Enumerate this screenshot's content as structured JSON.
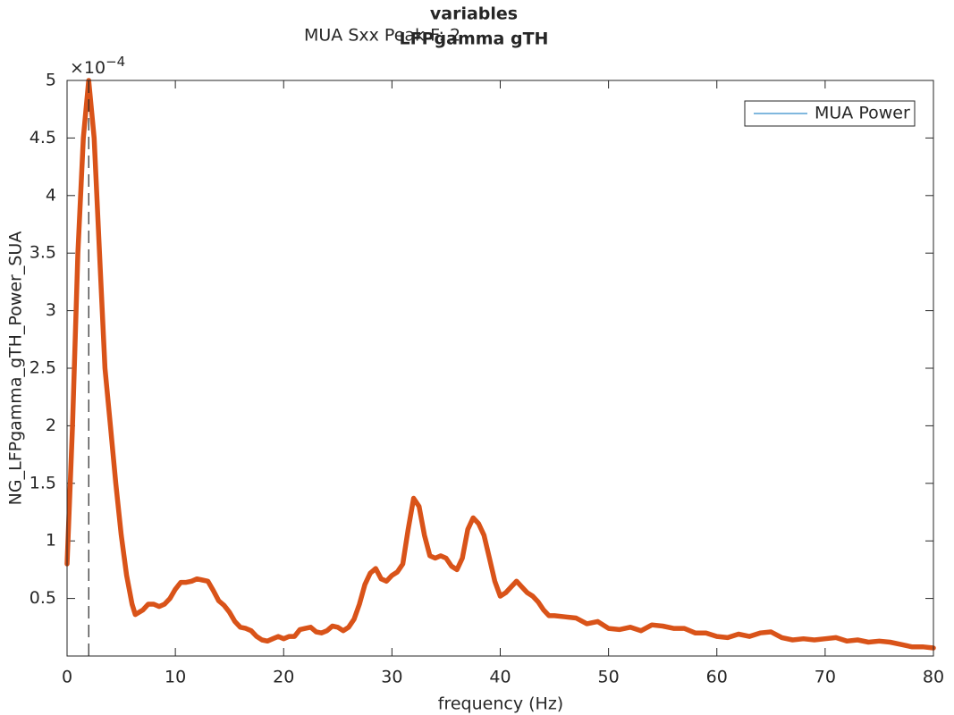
{
  "chart_data": {
    "type": "line",
    "title": "variables",
    "subtitle": "LFPgamma gTH",
    "annotation": "MUA Sxx Peak F: 2",
    "peak_x": 2,
    "xlabel": "frequency (Hz)",
    "ylabel": "NG_LFPgamma_gTH_Power_SUA",
    "y_exponent": {
      "base": "×10",
      "power": "−4"
    },
    "x": [
      0,
      0.5,
      1,
      1.5,
      2,
      2.5,
      3,
      3.5,
      4,
      4.5,
      5,
      5.5,
      6,
      6.3,
      7,
      7.5,
      8,
      8.5,
      9,
      9.5,
      10,
      10.5,
      11,
      11.5,
      12,
      12.5,
      13,
      13.5,
      14,
      14.5,
      15,
      15.5,
      16,
      16.5,
      17,
      17.5,
      18,
      18.5,
      19,
      19.5,
      20,
      20.5,
      21,
      21.5,
      22,
      22.5,
      23,
      23.5,
      24,
      24.5,
      25,
      25.5,
      26,
      26.5,
      27,
      27.5,
      28,
      28.5,
      29,
      29.5,
      30,
      30.5,
      31,
      31.5,
      32,
      32.5,
      33,
      33.5,
      34,
      34.5,
      35,
      35.5,
      36,
      36.5,
      37,
      37.5,
      38,
      38.5,
      39,
      39.5,
      40,
      40.5,
      41,
      41.5,
      42,
      42.5,
      43,
      43.5,
      44,
      44.5,
      45,
      46,
      47,
      48,
      49,
      50,
      51,
      52,
      53,
      54,
      55,
      56,
      57,
      58,
      59,
      60,
      61,
      62,
      63,
      64,
      65,
      66,
      67,
      68,
      69,
      70,
      71,
      72,
      73,
      74,
      75,
      76,
      77,
      78,
      79,
      80
    ],
    "series": [
      {
        "name": "MUA Power",
        "color": "#d95319",
        "legend_color": "#0072bd",
        "values": [
          0.8,
          2.0,
          3.5,
          4.5,
          5.0,
          4.5,
          3.5,
          2.5,
          2.0,
          1.5,
          1.05,
          0.7,
          0.45,
          0.36,
          0.4,
          0.45,
          0.45,
          0.43,
          0.45,
          0.5,
          0.58,
          0.64,
          0.64,
          0.65,
          0.67,
          0.66,
          0.65,
          0.57,
          0.48,
          0.44,
          0.38,
          0.3,
          0.25,
          0.24,
          0.22,
          0.17,
          0.14,
          0.13,
          0.15,
          0.17,
          0.15,
          0.17,
          0.17,
          0.23,
          0.24,
          0.25,
          0.21,
          0.2,
          0.22,
          0.26,
          0.25,
          0.22,
          0.25,
          0.32,
          0.45,
          0.62,
          0.72,
          0.76,
          0.67,
          0.65,
          0.7,
          0.73,
          0.8,
          1.1,
          1.37,
          1.3,
          1.05,
          0.87,
          0.85,
          0.87,
          0.85,
          0.78,
          0.75,
          0.85,
          1.1,
          1.2,
          1.15,
          1.05,
          0.85,
          0.65,
          0.52,
          0.55,
          0.6,
          0.65,
          0.6,
          0.55,
          0.52,
          0.47,
          0.4,
          0.35,
          0.35,
          0.34,
          0.33,
          0.28,
          0.3,
          0.24,
          0.23,
          0.25,
          0.22,
          0.27,
          0.26,
          0.24,
          0.24,
          0.2,
          0.2,
          0.17,
          0.16,
          0.19,
          0.17,
          0.2,
          0.21,
          0.16,
          0.14,
          0.15,
          0.14,
          0.15,
          0.16,
          0.13,
          0.14,
          0.12,
          0.13,
          0.12,
          0.1,
          0.08,
          0.08,
          0.07
        ]
      }
    ],
    "xlim": [
      0,
      80
    ],
    "xticks": [
      0,
      10,
      20,
      30,
      40,
      50,
      60,
      70,
      80
    ],
    "ylim": [
      0,
      5
    ],
    "yticks": [
      0.5,
      1,
      1.5,
      2,
      2.5,
      3,
      3.5,
      4,
      4.5,
      5
    ],
    "legend": "upper right",
    "grid": false
  }
}
